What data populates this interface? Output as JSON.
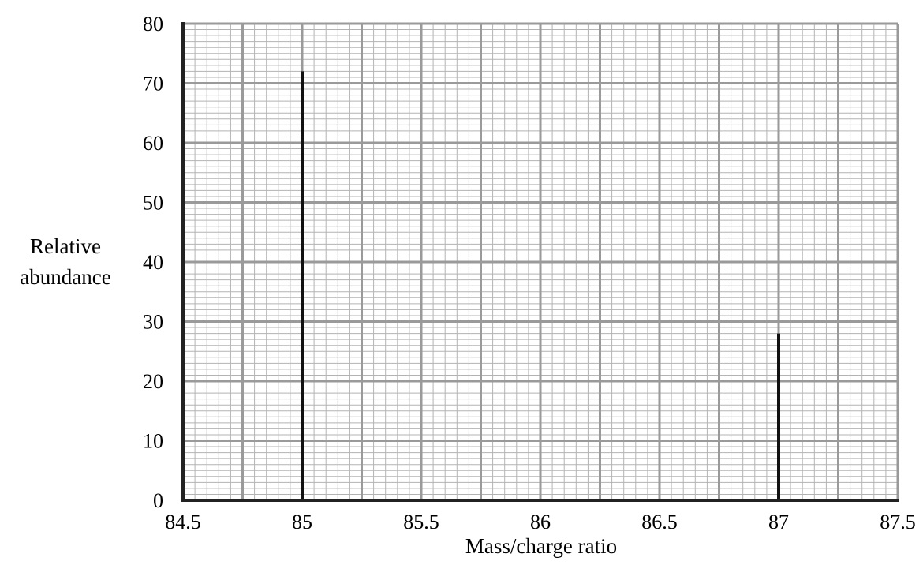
{
  "chart_data": {
    "type": "bar",
    "xlabel": "Mass/charge ratio",
    "ylabel_lines": [
      "Relative",
      "abundance"
    ],
    "xlim": [
      84.5,
      87.5
    ],
    "ylim": [
      0,
      80
    ],
    "x_ticks": [
      84.5,
      85,
      85.5,
      86,
      86.5,
      87,
      87.5
    ],
    "x_tick_labels": [
      "84.5",
      "85",
      "85.5",
      "86",
      "86.5",
      "87",
      "87.5"
    ],
    "y_ticks": [
      0,
      10,
      20,
      30,
      40,
      50,
      60,
      70,
      80
    ],
    "y_tick_labels": [
      "0",
      "10",
      "20",
      "30",
      "40",
      "50",
      "60",
      "70",
      "80"
    ],
    "grid": true,
    "bars": [
      {
        "x": 85,
        "value": 72
      },
      {
        "x": 87,
        "value": 28
      }
    ]
  }
}
